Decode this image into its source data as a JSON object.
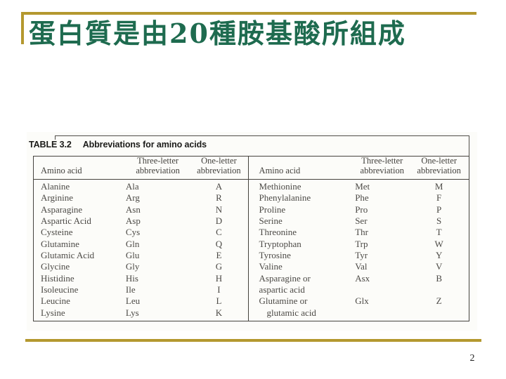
{
  "slide": {
    "title": "蛋白質是由20種胺基酸所組成",
    "page_number": "2"
  },
  "colors": {
    "gold": "#B4982F",
    "green": "#1E6B4F"
  },
  "table": {
    "caption_label": "TABLE 3.2",
    "caption_title": "Abbreviations for amino acids",
    "col_headers": {
      "amino": "Amino acid",
      "three_1": "Three-letter",
      "three_2": "abbreviation",
      "one_1": "One-letter",
      "one_2": "abbreviation"
    },
    "left_rows": [
      {
        "name": "Alanine",
        "three": "Ala",
        "one": "A"
      },
      {
        "name": "Arginine",
        "three": "Arg",
        "one": "R"
      },
      {
        "name": "Asparagine",
        "three": "Asn",
        "one": "N"
      },
      {
        "name": "Aspartic Acid",
        "three": "Asp",
        "one": "D"
      },
      {
        "name": "Cysteine",
        "three": "Cys",
        "one": "C"
      },
      {
        "name": "Glutamine",
        "three": "Gln",
        "one": "Q"
      },
      {
        "name": "Glutamic Acid",
        "three": "Glu",
        "one": "E"
      },
      {
        "name": "Glycine",
        "three": "Gly",
        "one": "G"
      },
      {
        "name": "Histidine",
        "three": "His",
        "one": "H"
      },
      {
        "name": "Isoleucine",
        "three": "Ile",
        "one": "I"
      },
      {
        "name": "Leucine",
        "three": "Leu",
        "one": "L"
      },
      {
        "name": "Lysine",
        "three": "Lys",
        "one": "K"
      }
    ],
    "right_rows": [
      {
        "name": "Methionine",
        "three": "Met",
        "one": "M"
      },
      {
        "name": "Phenylalanine",
        "three": "Phe",
        "one": "F"
      },
      {
        "name": "Proline",
        "three": "Pro",
        "one": "P"
      },
      {
        "name": "Serine",
        "three": "Ser",
        "one": "S"
      },
      {
        "name": "Threonine",
        "three": "Thr",
        "one": "T"
      },
      {
        "name": "Tryptophan",
        "three": "Trp",
        "one": "W"
      },
      {
        "name": "Tyrosine",
        "three": "Tyr",
        "one": "Y"
      },
      {
        "name": "Valine",
        "three": "Val",
        "one": "V"
      },
      {
        "name": "Asparagine or",
        "three": "Asx",
        "one": "B"
      },
      {
        "name": "aspartic acid",
        "three": "",
        "one": ""
      },
      {
        "name": "Glutamine or",
        "three": "Glx",
        "one": "Z"
      },
      {
        "name": "glutamic acid",
        "three": "",
        "one": ""
      }
    ]
  }
}
